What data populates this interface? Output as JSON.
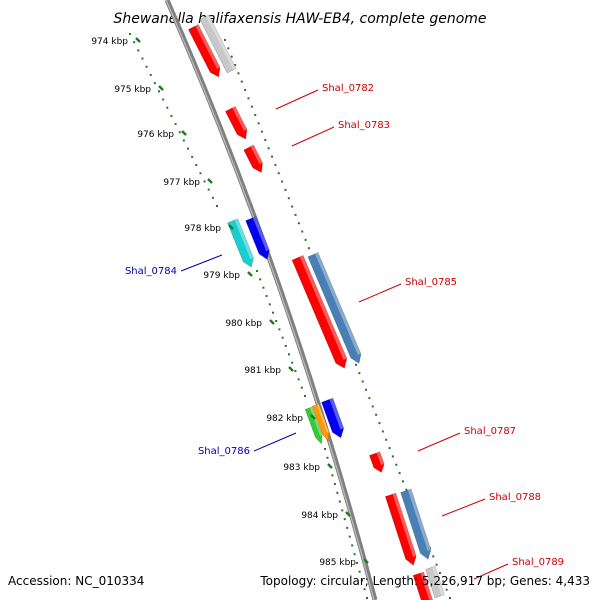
{
  "title": "Shewanella halifaxensis HAW-EB4, complete genome",
  "footer": {
    "accession": "Accession: NC_010334",
    "summary": "Topology: circular; Length: 5,226,917 bp; Genes: 4,433"
  },
  "colors": {
    "backbone": "#808080",
    "tick": "#1e7a1e",
    "forward_label": "#cc0000",
    "reverse_label": "#0000aa"
  },
  "kbp_labels": [
    "974 kbp",
    "975 kbp",
    "976 kbp",
    "977 kbp",
    "978 kbp",
    "979 kbp",
    "980 kbp",
    "981 kbp",
    "982 kbp",
    "983 kbp",
    "984 kbp",
    "985 kbp"
  ],
  "gene_labels": [
    {
      "name": "Shal_0782",
      "strand": "forward"
    },
    {
      "name": "Shal_0783",
      "strand": "forward"
    },
    {
      "name": "Shal_0784",
      "strand": "reverse"
    },
    {
      "name": "Shal_0785",
      "strand": "forward"
    },
    {
      "name": "Shal_0786",
      "strand": "reverse"
    },
    {
      "name": "Shal_0787",
      "strand": "forward"
    },
    {
      "name": "Shal_0788",
      "strand": "forward"
    },
    {
      "name": "Shal_0789",
      "strand": "forward"
    }
  ],
  "features": [
    {
      "kind": "gene-arrow",
      "color": "#ff0000"
    },
    {
      "kind": "rna-bar",
      "color": "#c8c8c8"
    },
    {
      "kind": "gene-arrow",
      "color": "#ff0000"
    },
    {
      "kind": "gene-arrow",
      "color": "#ff0000"
    },
    {
      "kind": "gene-arrow",
      "color": "#1aced0"
    },
    {
      "kind": "gene-arrow",
      "color": "#0000ee"
    },
    {
      "kind": "gene-arrow",
      "color": "#ff0000"
    },
    {
      "kind": "rna-bar",
      "color": "#4a7fb5"
    },
    {
      "kind": "gene-arrow",
      "color": "#33cc33"
    },
    {
      "kind": "gene-arrow",
      "color": "#ff9900"
    },
    {
      "kind": "gene-arrow",
      "color": "#0000ee"
    },
    {
      "kind": "gene-arrow",
      "color": "#ff0000"
    },
    {
      "kind": "gene-arrow",
      "color": "#ff0000"
    },
    {
      "kind": "rna-bar",
      "color": "#4a7fb5"
    },
    {
      "kind": "gene-arrow",
      "color": "#ff0000"
    },
    {
      "kind": "rna-bar",
      "color": "#c8c8c8"
    }
  ]
}
